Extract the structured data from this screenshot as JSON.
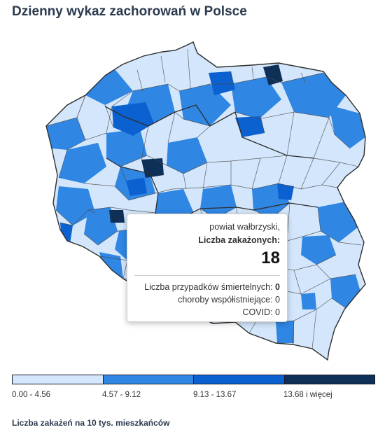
{
  "title": "Dzienny wykaz zachorowań w Polsce",
  "colors": {
    "class1": "#d3e6fb",
    "class2": "#2f86e3",
    "class3": "#0a61cf",
    "class4": "#0e2f56",
    "border": "#3d3d3d"
  },
  "tooltip": {
    "region": "powiat wałbrzyski,",
    "cases_label": "Liczba zakażonych:",
    "cases_value": "18",
    "deaths_label": "Liczba przypadków śmiertelnych:",
    "deaths_value": "0",
    "comorbid_label": "choroby współistniejące:",
    "comorbid_value": "0",
    "covid_label": "COVID:",
    "covid_value": "0"
  },
  "legend": {
    "classes": [
      {
        "label": "0.00 - 4.56",
        "color": "#d3e6fb"
      },
      {
        "label": "4.57 - 9.12",
        "color": "#2f86e3"
      },
      {
        "label": "9.13 - 13.67",
        "color": "#0a61cf"
      },
      {
        "label": "13.68 i więcej",
        "color": "#0e2f56"
      }
    ]
  },
  "footnote": "Liczba zakażeń na 10 tys. mieszkańców"
}
